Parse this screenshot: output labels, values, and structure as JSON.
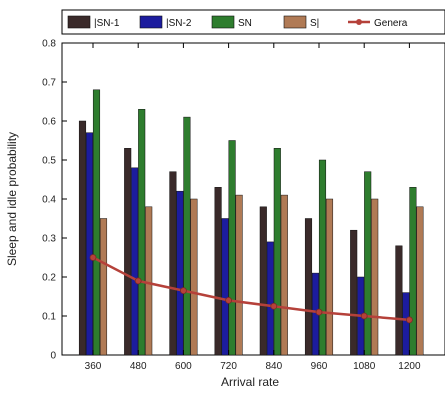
{
  "chart_data": {
    "type": "bar",
    "categories": [
      "360",
      "480",
      "600",
      "720",
      "840",
      "960",
      "1080",
      "1200"
    ],
    "series": [
      {
        "name": "|SN-1",
        "kind": "bar",
        "color": "#3a2a2a",
        "values": [
          0.6,
          0.53,
          0.47,
          0.43,
          0.38,
          0.35,
          0.32,
          0.28
        ]
      },
      {
        "name": "|SN-2",
        "kind": "bar",
        "color": "#1c1c9e",
        "values": [
          0.57,
          0.48,
          0.42,
          0.35,
          0.29,
          0.21,
          0.2,
          0.16
        ]
      },
      {
        "name": "SN",
        "kind": "bar",
        "color": "#2e7d2e",
        "values": [
          0.68,
          0.63,
          0.61,
          0.55,
          0.53,
          0.5,
          0.47,
          0.43
        ]
      },
      {
        "name": "S|",
        "kind": "bar",
        "color": "#b07a55",
        "values": [
          0.35,
          0.38,
          0.4,
          0.41,
          0.41,
          0.4,
          0.4,
          0.38
        ]
      },
      {
        "name": "Genera",
        "kind": "line",
        "color": "#b5413a",
        "values": [
          0.25,
          0.19,
          0.165,
          0.14,
          0.125,
          0.11,
          0.1,
          0.09
        ]
      }
    ],
    "xlabel": "Arrival rate",
    "ylabel": "Sleep and idle probability",
    "ylim": [
      0,
      0.8
    ],
    "yticks": [
      "0",
      "0.1",
      "0.2",
      "0.3",
      "0.4",
      "0.5",
      "0.6",
      "0.7",
      "0.8"
    ],
    "grid": false,
    "legend": "top"
  }
}
